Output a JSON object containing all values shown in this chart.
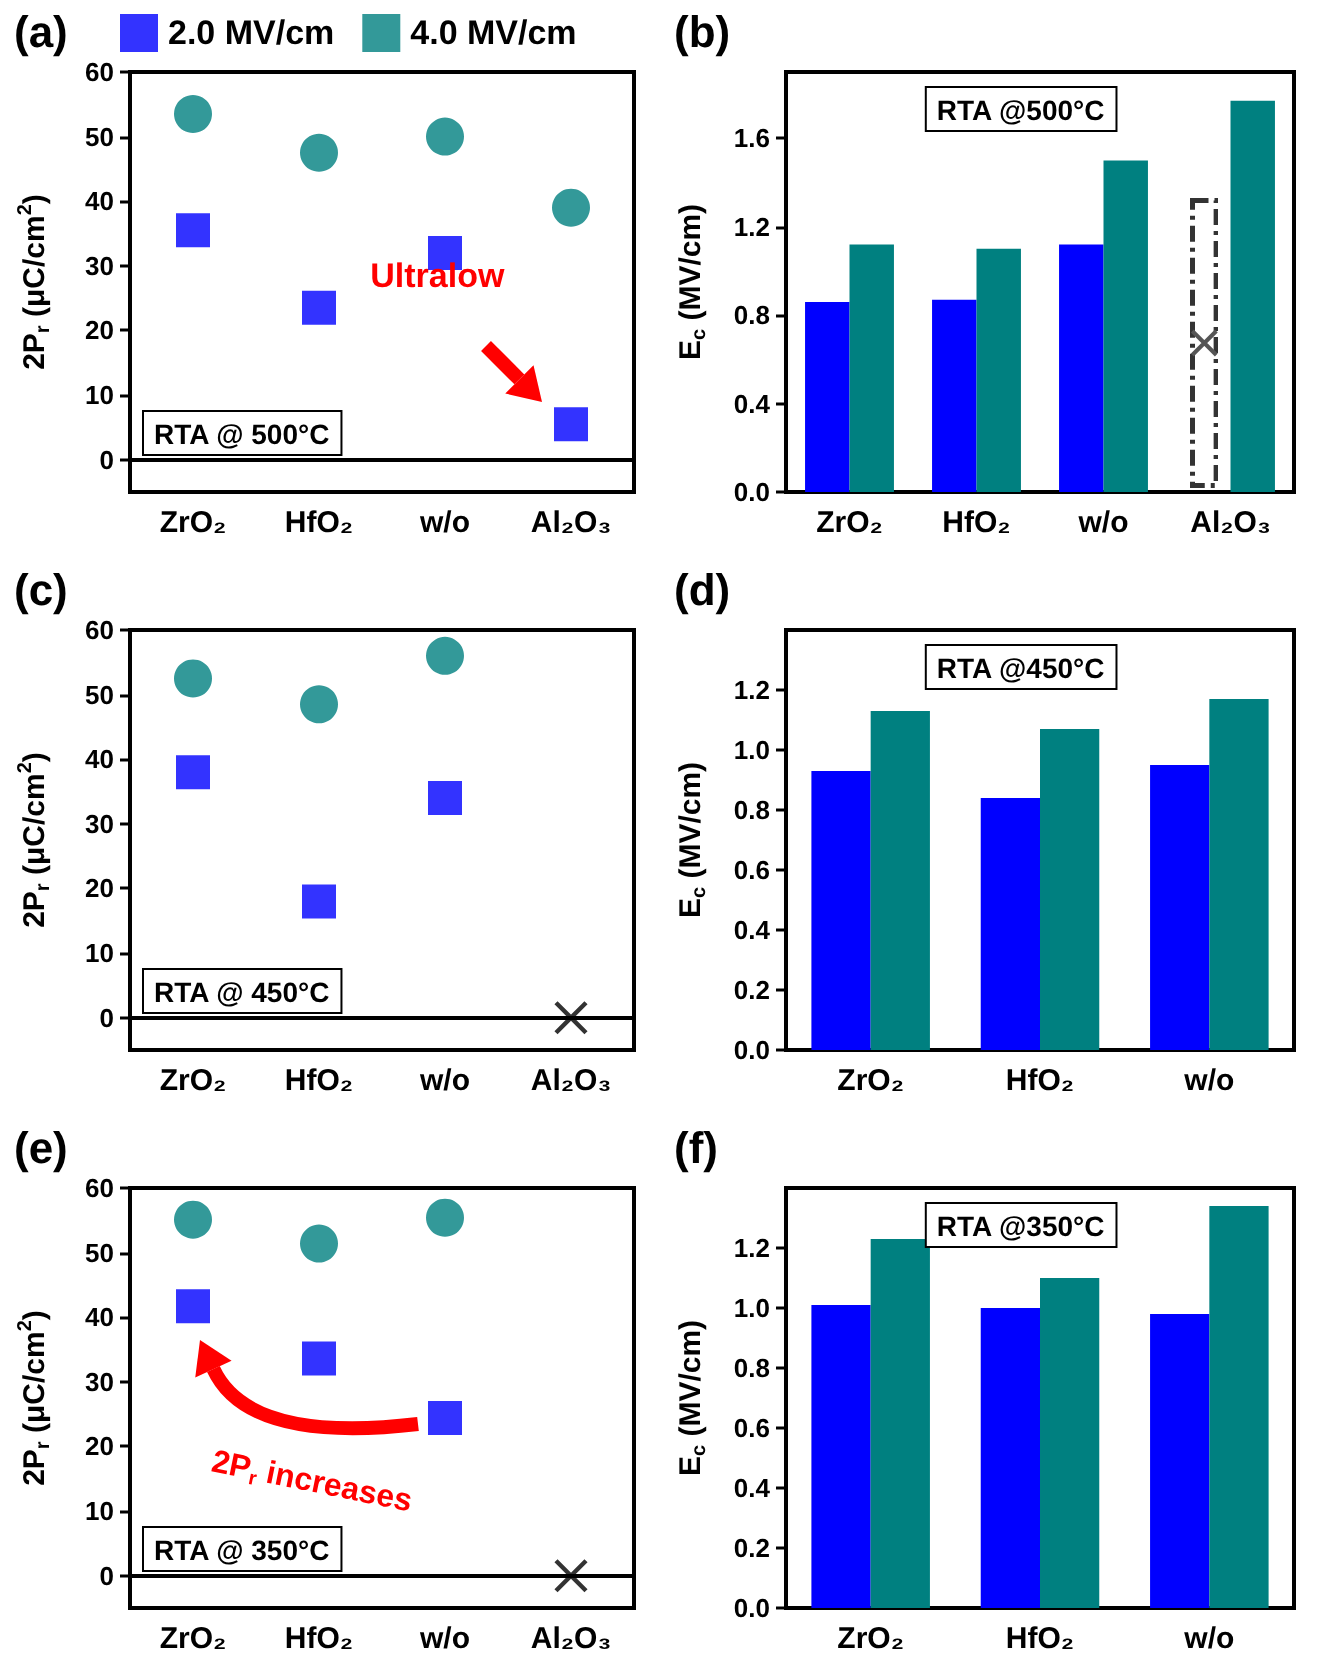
{
  "chart_data": [
    {
      "type": "scatter",
      "title": "(a)",
      "ylabel": "2P$_{r}$ (μC/cm$^{2}$)",
      "categories": [
        "ZrO₂",
        "HfO₂",
        "w/o",
        "Al₂O₃"
      ],
      "ylim": [
        -5,
        60
      ],
      "yticks": [
        0,
        10,
        20,
        30,
        40,
        50,
        60
      ],
      "legend": "top",
      "annotations": [
        "RTA @ 500°C",
        "Ultralow"
      ],
      "series": [
        {
          "name": "2.0 MV/cm",
          "color": "#0000ff",
          "marker": "square",
          "values": [
            35.5,
            23.5,
            32,
            5.5
          ]
        },
        {
          "name": "4.0 MV/cm",
          "color": "#008080",
          "marker": "circle",
          "values": [
            53.5,
            47.5,
            50,
            39
          ]
        }
      ]
    },
    {
      "type": "bar",
      "title": "(b)",
      "ylabel": "E$_{c}$ (MV/cm)",
      "categories": [
        "ZrO₂",
        "HfO₂",
        "w/o",
        "Al₂O₃"
      ],
      "ylim": [
        0,
        1.9
      ],
      "yticks": [
        {
          "value": 0,
          "label": "0.0"
        },
        {
          "value": 0.4,
          "label": "0.4"
        },
        {
          "value": 0.8,
          "label": "0.8"
        },
        {
          "value": 1.2,
          "label": "1.2"
        },
        {
          "value": 1.6,
          "label": "1.6"
        }
      ],
      "annotations": [
        "RTA @500°C"
      ],
      "series": [
        {
          "color": "#0000ff",
          "values": [
            0.86,
            0.87,
            1.12,
            null
          ]
        },
        {
          "color": "#008080",
          "values": [
            1.12,
            1.1,
            1.5,
            1.77
          ]
        }
      ]
    },
    {
      "type": "scatter",
      "title": "(c)",
      "ylabel": "2P$_{r}$ (μC/cm$^{2}$)",
      "categories": [
        "ZrO₂",
        "HfO₂",
        "w/o",
        "Al₂O₃"
      ],
      "ylim": [
        -5,
        60
      ],
      "yticks": [
        0,
        10,
        20,
        30,
        40,
        50,
        60
      ],
      "annotations": [
        "RTA @ 450°C"
      ],
      "series": [
        {
          "color": "#0000ff",
          "marker": "square",
          "values": [
            38,
            18,
            34,
            null
          ]
        },
        {
          "color": "#008080",
          "marker": "circle",
          "values": [
            52.5,
            48.5,
            56,
            null
          ]
        },
        {
          "color": "#000000",
          "marker": "cross",
          "values": [
            null,
            null,
            null,
            0
          ]
        }
      ]
    },
    {
      "type": "bar",
      "title": "(d)",
      "ylabel": "E$_{c}$ (MV/cm)",
      "categories": [
        "ZrO₂",
        "HfO₂",
        "w/o"
      ],
      "ylim": [
        0,
        1.4
      ],
      "yticks": [
        {
          "value": 0,
          "label": "0.0"
        },
        {
          "value": 0.2,
          "label": "0.2"
        },
        {
          "value": 0.4,
          "label": "0.4"
        },
        {
          "value": 0.6,
          "label": "0.6"
        },
        {
          "value": 0.8,
          "label": "0.8"
        },
        {
          "value": 1,
          "label": "1.0"
        },
        {
          "value": 1.2,
          "label": "1.2"
        }
      ],
      "annotations": [
        "RTA @450°C"
      ],
      "series": [
        {
          "color": "#0000ff",
          "values": [
            0.93,
            0.84,
            0.95
          ]
        },
        {
          "color": "#008080",
          "values": [
            1.13,
            1.07,
            1.17
          ]
        }
      ]
    },
    {
      "type": "scatter",
      "title": "(e)",
      "ylabel": "2P$_{r}$ (μC/cm$^{2}$)",
      "categories": [
        "ZrO₂",
        "HfO₂",
        "w/o",
        "Al₂O₃"
      ],
      "ylim": [
        -5,
        60
      ],
      "yticks": [
        0,
        10,
        20,
        30,
        40,
        50,
        60
      ],
      "annotations": [
        "RTA @ 350°C",
        "2P$_{r}$ increases"
      ],
      "series": [
        {
          "color": "#0000ff",
          "marker": "square",
          "values": [
            41.7,
            33.6,
            24.4,
            null
          ]
        },
        {
          "color": "#008080",
          "marker": "circle",
          "values": [
            55.1,
            51.4,
            55.4,
            null
          ]
        },
        {
          "color": "#000000",
          "marker": "cross",
          "values": [
            null,
            null,
            null,
            0
          ]
        }
      ]
    },
    {
      "type": "bar",
      "title": "(f)",
      "ylabel": "E$_{c}$ (MV/cm)",
      "categories": [
        "ZrO₂",
        "HfO₂",
        "w/o"
      ],
      "ylim": [
        0,
        1.4
      ],
      "yticks": [
        {
          "value": 0,
          "label": "0.0"
        },
        {
          "value": 0.2,
          "label": "0.2"
        },
        {
          "value": 0.4,
          "label": "0.4"
        },
        {
          "value": 0.6,
          "label": "0.6"
        },
        {
          "value": 0.8,
          "label": "0.8"
        },
        {
          "value": 1,
          "label": "1.0"
        },
        {
          "value": 1.2,
          "label": "1.2"
        }
      ],
      "annotations": [
        "RTA @350°C"
      ],
      "series": [
        {
          "color": "#0000ff",
          "values": [
            1.01,
            1.0,
            0.98
          ]
        },
        {
          "color": "#008080",
          "values": [
            1.23,
            1.1,
            1.34
          ]
        }
      ]
    }
  ]
}
